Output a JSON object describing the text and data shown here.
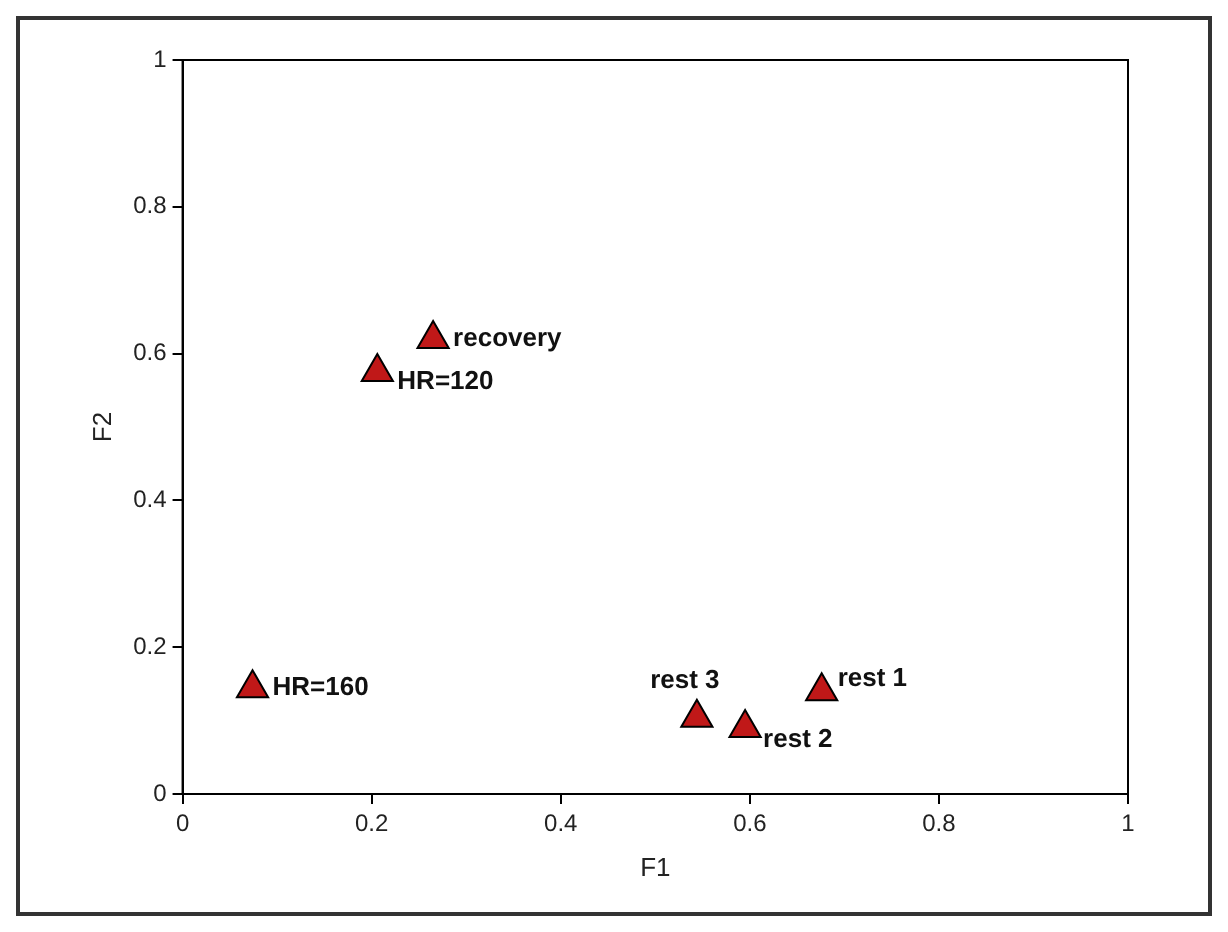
{
  "chart_data": {
    "type": "scatter",
    "xlabel": "F1",
    "ylabel": "F2",
    "x": [
      0.265,
      0.206,
      0.074,
      0.544,
      0.595,
      0.676
    ],
    "values": [
      0.62,
      0.575,
      0.144,
      0.104,
      0.09,
      0.14
    ],
    "color": "#c01818",
    "marker": "triangle",
    "grid": false,
    "legend": false,
    "xlim": [
      0,
      1
    ],
    "ylim": [
      0,
      1
    ],
    "xticks": [
      0,
      0.2,
      0.4,
      0.6,
      0.8,
      1
    ],
    "yticks": [
      0,
      0.2,
      0.4,
      0.6,
      0.8,
      1
    ],
    "annotations": [
      {
        "text": "recovery",
        "x": 0.265,
        "y": 0.62
      },
      {
        "text": "HR=120",
        "x": 0.206,
        "y": 0.575
      },
      {
        "text": "HR=160",
        "x": 0.074,
        "y": 0.144
      },
      {
        "text": "rest 3",
        "x": 0.544,
        "y": 0.104
      },
      {
        "text": "rest 2",
        "x": 0.595,
        "y": 0.09
      },
      {
        "text": "rest 1",
        "x": 0.676,
        "y": 0.14
      }
    ]
  }
}
